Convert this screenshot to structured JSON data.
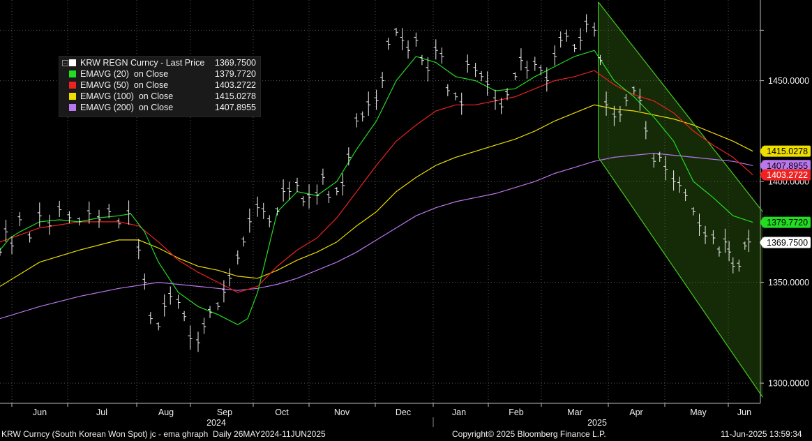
{
  "footer": {
    "left": "KRW Curncy (South Korean Won Spot) jc - ema ghraph  Daily 26MAY2024-11JUN2025",
    "center": "Copyright© 2025 Bloomberg Finance L.P.",
    "right": "11-Jun-2025 13:59:34"
  },
  "legend": [
    {
      "name": "KRW REGN Curncy - Last Price",
      "value": "1369.7500",
      "color": "#ffffff"
    },
    {
      "name": "EMAVG (20)  on Close",
      "value": "1379.7720",
      "color": "#22dd22"
    },
    {
      "name": "EMAVG (50)  on Close",
      "value": "1403.2722",
      "color": "#ee2222"
    },
    {
      "name": "EMAVG (100)  on Close",
      "value": "1415.0278",
      "color": "#eedd00"
    },
    {
      "name": "EMAVG (200)  on Close",
      "value": "1407.8955",
      "color": "#bb77ee"
    }
  ],
  "chart_data": {
    "type": "line",
    "title": "KRW REGN Curncy",
    "ylim": [
      1290,
      1490
    ],
    "y_ticks": [
      "1300.0000",
      "1350.0000",
      "1400.0000",
      "1450.0000"
    ],
    "x_month_labels": [
      "Jun",
      "Jul",
      "Aug",
      "Sep",
      "Oct",
      "Nov",
      "Dec",
      "Jan",
      "Feb",
      "Mar",
      "Apr",
      "May",
      "Jun"
    ],
    "x_year_labels": [
      "2024",
      "2025"
    ],
    "x_months_start": "2024-05-26",
    "x_months_end": "2025-06-11",
    "grid": true,
    "price_bars_close": [
      [
        0,
        1365
      ],
      [
        0.3,
        1375
      ],
      [
        0.6,
        1368
      ],
      [
        1.0,
        1381
      ],
      [
        1.5,
        1372
      ],
      [
        2.0,
        1383
      ],
      [
        2.5,
        1378
      ],
      [
        3.0,
        1386
      ],
      [
        3.5,
        1382
      ],
      [
        4.0,
        1380
      ],
      [
        4.5,
        1384
      ],
      [
        5.0,
        1381
      ],
      [
        5.5,
        1385
      ],
      [
        6.0,
        1379
      ],
      [
        6.5,
        1384
      ],
      [
        7.0,
        1366
      ],
      [
        7.3,
        1350
      ],
      [
        7.6,
        1332
      ],
      [
        8.0,
        1328
      ],
      [
        8.3,
        1338
      ],
      [
        8.6,
        1343
      ],
      [
        9.0,
        1340
      ],
      [
        9.3,
        1333
      ],
      [
        9.6,
        1322
      ],
      [
        10.0,
        1320
      ],
      [
        10.3,
        1328
      ],
      [
        10.6,
        1335
      ],
      [
        11.0,
        1338
      ],
      [
        11.3,
        1345
      ],
      [
        11.6,
        1352
      ],
      [
        12.0,
        1362
      ],
      [
        12.3,
        1370
      ],
      [
        12.6,
        1380
      ],
      [
        13.0,
        1387
      ],
      [
        13.3,
        1385
      ],
      [
        13.6,
        1380
      ],
      [
        14.0,
        1385
      ],
      [
        14.3,
        1395
      ],
      [
        14.6,
        1395
      ],
      [
        15.0,
        1398
      ],
      [
        15.3,
        1390
      ],
      [
        15.6,
        1392
      ],
      [
        16.0,
        1393
      ],
      [
        16.3,
        1402
      ],
      [
        16.6,
        1392
      ],
      [
        17.0,
        1395
      ],
      [
        17.3,
        1398
      ],
      [
        17.6,
        1412
      ],
      [
        18.0,
        1430
      ],
      [
        18.3,
        1432
      ],
      [
        18.6,
        1438
      ],
      [
        19.0,
        1440
      ],
      [
        19.3,
        1450
      ],
      [
        19.6,
        1468
      ],
      [
        20.0,
        1474
      ],
      [
        20.3,
        1470
      ],
      [
        20.6,
        1465
      ],
      [
        21.0,
        1470
      ],
      [
        21.3,
        1460
      ],
      [
        21.6,
        1455
      ],
      [
        22.0,
        1465
      ],
      [
        22.3,
        1462
      ],
      [
        22.6,
        1445
      ],
      [
        23.0,
        1442
      ],
      [
        23.3,
        1438
      ],
      [
        23.6,
        1458
      ],
      [
        24.0,
        1455
      ],
      [
        24.3,
        1452
      ],
      [
        24.6,
        1448
      ],
      [
        25.0,
        1440
      ],
      [
        25.3,
        1437
      ],
      [
        25.6,
        1443
      ],
      [
        26.0,
        1452
      ],
      [
        26.3,
        1460
      ],
      [
        26.6,
        1455
      ],
      [
        27.0,
        1458
      ],
      [
        27.3,
        1455
      ],
      [
        27.6,
        1450
      ],
      [
        28.0,
        1462
      ],
      [
        28.3,
        1470
      ],
      [
        28.6,
        1472
      ],
      [
        29.0,
        1466
      ],
      [
        29.3,
        1470
      ],
      [
        29.6,
        1478
      ],
      [
        30.0,
        1475
      ],
      [
        30.3,
        1460
      ],
      [
        30.6,
        1438
      ],
      [
        31.0,
        1432
      ],
      [
        31.3,
        1433
      ],
      [
        31.6,
        1440
      ],
      [
        32.0,
        1445
      ],
      [
        32.3,
        1440
      ],
      [
        32.6,
        1425
      ],
      [
        33.0,
        1410
      ],
      [
        33.3,
        1412
      ],
      [
        33.6,
        1406
      ],
      [
        34.0,
        1400
      ],
      [
        34.3,
        1398
      ],
      [
        34.6,
        1393
      ],
      [
        35.0,
        1385
      ],
      [
        35.3,
        1378
      ],
      [
        35.6,
        1373
      ],
      [
        36.0,
        1372
      ],
      [
        36.3,
        1365
      ],
      [
        36.6,
        1370
      ],
      [
        36.8,
        1365
      ],
      [
        37.0,
        1358
      ],
      [
        37.3,
        1358
      ],
      [
        37.6,
        1368
      ],
      [
        37.8,
        1370
      ]
    ],
    "series": [
      {
        "name": "EMAVG (20)",
        "color": "#22dd22",
        "points": [
          [
            0,
            1366
          ],
          [
            0.5,
            1372
          ],
          [
            1,
            1375
          ],
          [
            2,
            1380
          ],
          [
            3,
            1381
          ],
          [
            4,
            1380
          ],
          [
            5,
            1382
          ],
          [
            6,
            1383
          ],
          [
            6.6,
            1384
          ],
          [
            7.3,
            1375
          ],
          [
            8,
            1360
          ],
          [
            9,
            1345
          ],
          [
            10,
            1338
          ],
          [
            11,
            1334
          ],
          [
            12,
            1329
          ],
          [
            12.5,
            1332
          ],
          [
            13,
            1345
          ],
          [
            13.5,
            1365
          ],
          [
            14,
            1385
          ],
          [
            15,
            1395
          ],
          [
            16,
            1393
          ],
          [
            17,
            1400
          ],
          [
            18,
            1416
          ],
          [
            19,
            1430
          ],
          [
            20,
            1450
          ],
          [
            21,
            1462
          ],
          [
            22,
            1459
          ],
          [
            23,
            1452
          ],
          [
            24,
            1450
          ],
          [
            25,
            1445
          ],
          [
            26,
            1446
          ],
          [
            27,
            1452
          ],
          [
            28,
            1457
          ],
          [
            29,
            1462
          ],
          [
            30,
            1465
          ],
          [
            31,
            1450
          ],
          [
            32,
            1442
          ],
          [
            33,
            1432
          ],
          [
            34,
            1420
          ],
          [
            35,
            1400
          ],
          [
            36,
            1392
          ],
          [
            37,
            1383
          ],
          [
            38,
            1379.77
          ]
        ]
      },
      {
        "name": "EMAVG (50)",
        "color": "#ee2222",
        "points": [
          [
            0,
            1370
          ],
          [
            2,
            1377
          ],
          [
            4,
            1380
          ],
          [
            6,
            1380
          ],
          [
            7,
            1378
          ],
          [
            8,
            1370
          ],
          [
            9,
            1361
          ],
          [
            10,
            1355
          ],
          [
            11,
            1350
          ],
          [
            12,
            1345
          ],
          [
            13,
            1348
          ],
          [
            14,
            1358
          ],
          [
            15,
            1366
          ],
          [
            16,
            1372
          ],
          [
            17,
            1382
          ],
          [
            18,
            1395
          ],
          [
            19,
            1408
          ],
          [
            20,
            1420
          ],
          [
            21,
            1428
          ],
          [
            22,
            1435
          ],
          [
            23,
            1438
          ],
          [
            24,
            1438
          ],
          [
            25,
            1440
          ],
          [
            26,
            1442
          ],
          [
            27,
            1446
          ],
          [
            28,
            1450
          ],
          [
            29,
            1452
          ],
          [
            30,
            1455
          ],
          [
            31,
            1448
          ],
          [
            32,
            1443
          ],
          [
            33,
            1440
          ],
          [
            34,
            1434
          ],
          [
            35,
            1425
          ],
          [
            36,
            1418
          ],
          [
            37,
            1412
          ],
          [
            38,
            1403.27
          ]
        ]
      },
      {
        "name": "EMAVG (100)",
        "color": "#eedd00",
        "points": [
          [
            0,
            1348
          ],
          [
            2,
            1360
          ],
          [
            4,
            1366
          ],
          [
            6,
            1371
          ],
          [
            7,
            1371
          ],
          [
            8,
            1367
          ],
          [
            9,
            1362
          ],
          [
            10,
            1358
          ],
          [
            11,
            1356
          ],
          [
            12,
            1353
          ],
          [
            13,
            1352
          ],
          [
            14,
            1356
          ],
          [
            15,
            1361
          ],
          [
            16,
            1365
          ],
          [
            17,
            1370
          ],
          [
            18,
            1378
          ],
          [
            19,
            1385
          ],
          [
            20,
            1395
          ],
          [
            21,
            1402
          ],
          [
            22,
            1408
          ],
          [
            23,
            1412
          ],
          [
            24,
            1415
          ],
          [
            25,
            1418
          ],
          [
            26,
            1421
          ],
          [
            27,
            1425
          ],
          [
            28,
            1430
          ],
          [
            29,
            1434
          ],
          [
            30,
            1438
          ],
          [
            31,
            1436
          ],
          [
            32,
            1435
          ],
          [
            33,
            1433
          ],
          [
            34,
            1431
          ],
          [
            35,
            1428
          ],
          [
            36,
            1424
          ],
          [
            37,
            1420
          ],
          [
            38,
            1415.03
          ]
        ]
      },
      {
        "name": "EMAVG (200)",
        "color": "#bb77ee",
        "points": [
          [
            0,
            1332
          ],
          [
            2,
            1338
          ],
          [
            4,
            1343
          ],
          [
            6,
            1347
          ],
          [
            8,
            1350
          ],
          [
            9,
            1349
          ],
          [
            10,
            1348
          ],
          [
            11,
            1347
          ],
          [
            12,
            1346
          ],
          [
            13,
            1347
          ],
          [
            14,
            1349
          ],
          [
            15,
            1352
          ],
          [
            16,
            1356
          ],
          [
            17,
            1360
          ],
          [
            18,
            1365
          ],
          [
            19,
            1371
          ],
          [
            20,
            1377
          ],
          [
            21,
            1383
          ],
          [
            22,
            1387
          ],
          [
            23,
            1390
          ],
          [
            24,
            1392
          ],
          [
            25,
            1394
          ],
          [
            26,
            1397
          ],
          [
            27,
            1400
          ],
          [
            28,
            1404
          ],
          [
            29,
            1407
          ],
          [
            30,
            1410
          ],
          [
            31,
            1412
          ],
          [
            32,
            1413
          ],
          [
            33,
            1414
          ],
          [
            34,
            1413
          ],
          [
            35,
            1412
          ],
          [
            36,
            1411
          ],
          [
            37,
            1410
          ],
          [
            38,
            1407.9
          ]
        ]
      }
    ],
    "channel": {
      "color": "#44cc22",
      "upper": [
        [
          30.2,
          1489
        ],
        [
          38.5,
          1385
        ]
      ],
      "lower": [
        [
          30.2,
          1412
        ],
        [
          38.5,
          1293
        ]
      ]
    },
    "last_labels": [
      {
        "value": "1415.0278",
        "bg": "#eedd00",
        "fg": "#000000",
        "y": 1415.03
      },
      {
        "value": "1407.8955",
        "bg": "#bb77ee",
        "fg": "#000000",
        "y": 1407.9
      },
      {
        "value": "1403.2722",
        "bg": "#ee2222",
        "fg": "#ffffff",
        "y": 1403.27
      },
      {
        "value": "1379.7720",
        "bg": "#22dd22",
        "fg": "#000000",
        "y": 1379.77
      },
      {
        "value": "1369.7500",
        "bg": "#ffffff",
        "fg": "#000000",
        "y": 1369.75
      }
    ]
  }
}
